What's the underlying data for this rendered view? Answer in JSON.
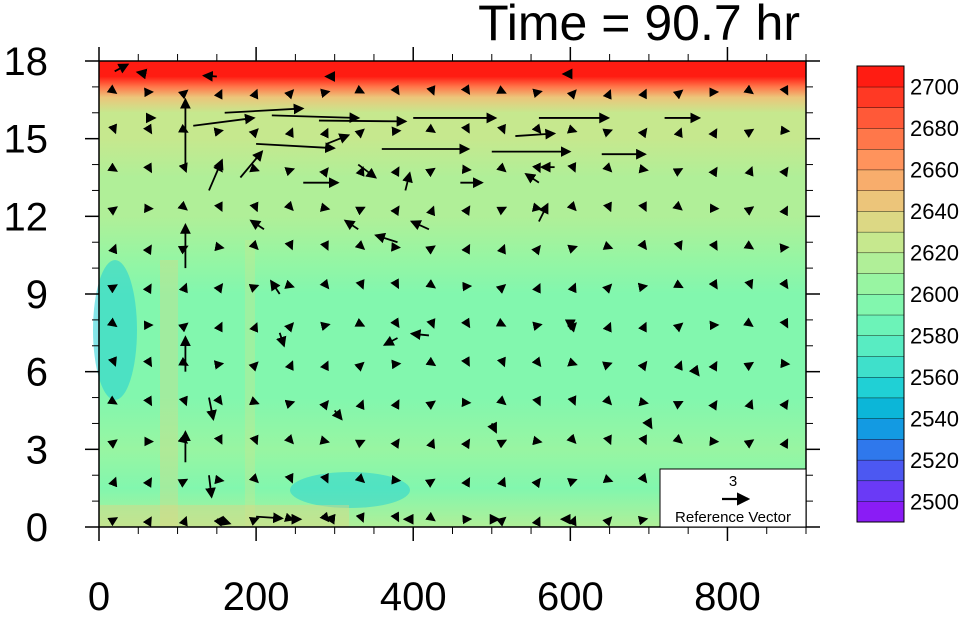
{
  "chart_data": {
    "type": "heatmap",
    "title": "Time = 90.7 hr",
    "xlim": [
      0,
      900
    ],
    "ylim": [
      0,
      18
    ],
    "x_ticks": [
      0,
      200,
      400,
      600,
      800
    ],
    "y_ticks": [
      0,
      3,
      6,
      9,
      12,
      15,
      18
    ],
    "field_rows": [
      {
        "y": 0.0,
        "value": 2615
      },
      {
        "y": 1.5,
        "value": 2595
      },
      {
        "y": 3.0,
        "value": 2600
      },
      {
        "y": 5.0,
        "value": 2595
      },
      {
        "y": 7.0,
        "value": 2592
      },
      {
        "y": 9.0,
        "value": 2596
      },
      {
        "y": 10.5,
        "value": 2605
      },
      {
        "y": 12.0,
        "value": 2612
      },
      {
        "y": 13.5,
        "value": 2616
      },
      {
        "y": 15.0,
        "value": 2620
      },
      {
        "y": 16.0,
        "value": 2628
      },
      {
        "y": 16.6,
        "value": 2645
      },
      {
        "y": 17.0,
        "value": 2670
      },
      {
        "y": 17.4,
        "value": 2700
      },
      {
        "y": 18.0,
        "value": 2710
      }
    ],
    "colorbar": {
      "min": 2490,
      "max": 2710,
      "step": 10,
      "labels": [
        2500,
        2520,
        2540,
        2560,
        2580,
        2600,
        2620,
        2640,
        2660,
        2680,
        2700
      ],
      "colors": [
        "#8a1cf5",
        "#6a3af6",
        "#4c58f2",
        "#2f78ec",
        "#139ae2",
        "#0cb6d8",
        "#20d0d5",
        "#3fe0cb",
        "#58ecc2",
        "#6cf3b8",
        "#82f7ae",
        "#98f5a2",
        "#b0ef98",
        "#c6e88e",
        "#dcd884",
        "#ecc57a",
        "#f8ad6c",
        "#ff935c",
        "#ff774a",
        "#ff5938",
        "#ff3924",
        "#ff1c12"
      ]
    },
    "vectors": {
      "unit": "3",
      "reference_label": "Reference Vector",
      "reference_magnitude": 3,
      "items": [
        {
          "x": 20,
          "y": 17.6,
          "u": 1.5,
          "v": 0.8
        },
        {
          "x": 60,
          "y": 17.5,
          "u": -1.0,
          "v": 0.2
        },
        {
          "x": 150,
          "y": 17.4,
          "u": -1.5,
          "v": 0.1
        },
        {
          "x": 300,
          "y": 17.4,
          "u": -1.0,
          "v": 0
        },
        {
          "x": 600,
          "y": 17.5,
          "u": -0.8,
          "v": 0
        },
        {
          "x": 60,
          "y": 15.8,
          "u": 1.0,
          "v": 0
        },
        {
          "x": 110,
          "y": 14.0,
          "u": 0,
          "v": 7.5
        },
        {
          "x": 110,
          "y": 10.0,
          "u": 0,
          "v": 5.0
        },
        {
          "x": 110,
          "y": 6.0,
          "u": 0,
          "v": 4.0
        },
        {
          "x": 110,
          "y": 2.5,
          "u": 0,
          "v": 3.5
        },
        {
          "x": 120,
          "y": 15.5,
          "u": 7.0,
          "v": 0.9
        },
        {
          "x": 160,
          "y": 16.0,
          "u": 9.0,
          "v": 0.5
        },
        {
          "x": 140,
          "y": 13.0,
          "u": 1.5,
          "v": 3.5
        },
        {
          "x": 180,
          "y": 13.5,
          "u": 2.5,
          "v": 3.0
        },
        {
          "x": 220,
          "y": 15.9,
          "u": 10.0,
          "v": -0.3
        },
        {
          "x": 280,
          "y": 15.7,
          "u": 10.0,
          "v": -0.1
        },
        {
          "x": 400,
          "y": 15.8,
          "u": 9.5,
          "v": 0
        },
        {
          "x": 560,
          "y": 15.8,
          "u": 8.0,
          "v": 0
        },
        {
          "x": 720,
          "y": 15.8,
          "u": 4.0,
          "v": 0
        },
        {
          "x": 200,
          "y": 14.8,
          "u": 9.0,
          "v": -0.5
        },
        {
          "x": 360,
          "y": 14.6,
          "u": 10.0,
          "v": 0
        },
        {
          "x": 500,
          "y": 14.5,
          "u": 9.0,
          "v": 0
        },
        {
          "x": 640,
          "y": 14.4,
          "u": 5.0,
          "v": 0
        },
        {
          "x": 530,
          "y": 15.1,
          "u": 4.5,
          "v": 0.3
        },
        {
          "x": 260,
          "y": 13.3,
          "u": 4.0,
          "v": 0
        },
        {
          "x": 290,
          "y": 14.8,
          "u": 2.5,
          "v": 1.0
        },
        {
          "x": 330,
          "y": 14.0,
          "u": 2.0,
          "v": -1.5
        },
        {
          "x": 390,
          "y": 13.0,
          "u": 0.5,
          "v": 2.0
        },
        {
          "x": 460,
          "y": 13.3,
          "u": 2.5,
          "v": 0
        },
        {
          "x": 560,
          "y": 13.3,
          "u": -1.5,
          "v": 1.0
        },
        {
          "x": 580,
          "y": 13.9,
          "u": -1.5,
          "v": 0
        },
        {
          "x": 560,
          "y": 11.8,
          "u": 1.0,
          "v": 2.0
        },
        {
          "x": 330,
          "y": 11.5,
          "u": -1.5,
          "v": 1.0
        },
        {
          "x": 380,
          "y": 11.0,
          "u": -2.5,
          "v": 0.8
        },
        {
          "x": 420,
          "y": 11.5,
          "u": -2.0,
          "v": 0.9
        },
        {
          "x": 380,
          "y": 7.3,
          "u": -1.5,
          "v": -0.8
        },
        {
          "x": 420,
          "y": 7.4,
          "u": -2.0,
          "v": 0.2
        },
        {
          "x": 210,
          "y": 11.5,
          "u": -1.5,
          "v": 1.0
        },
        {
          "x": 230,
          "y": 9.0,
          "u": -1.0,
          "v": 1.5
        },
        {
          "x": 230,
          "y": 7.5,
          "u": 0.5,
          "v": -1.5
        },
        {
          "x": 140,
          "y": 5.0,
          "u": 0.5,
          "v": -2.5
        },
        {
          "x": 140,
          "y": 2.0,
          "u": 0.3,
          "v": -2.5
        },
        {
          "x": 150,
          "y": 0.3,
          "u": 1.5,
          "v": -0.5
        },
        {
          "x": 200,
          "y": 0.4,
          "u": 3.0,
          "v": -0.2
        },
        {
          "x": 240,
          "y": 0.3,
          "u": 1.5,
          "v": 0
        },
        {
          "x": 300,
          "y": 0.3,
          "u": -1.0,
          "v": 0.1
        },
        {
          "x": 400,
          "y": 0.3,
          "u": -1.0,
          "v": 0
        },
        {
          "x": 500,
          "y": 0.3,
          "u": 0.8,
          "v": 0
        },
        {
          "x": 600,
          "y": 0.3,
          "u": -1.0,
          "v": 0
        },
        {
          "x": 300,
          "y": 4.5,
          "u": 0.8,
          "v": -1.0
        },
        {
          "x": 500,
          "y": 4.0,
          "u": 0.5,
          "v": -1.0
        },
        {
          "x": 700,
          "y": 4.0,
          "u": 0.3,
          "v": -0.5
        },
        {
          "x": 600,
          "y": 8.0,
          "u": 0,
          "v": -1.0
        },
        {
          "x": 760,
          "y": 6.0,
          "u": 0.3,
          "v": -0.4
        }
      ]
    }
  },
  "reference_legend": {
    "value": "3",
    "label": "Reference Vector"
  }
}
